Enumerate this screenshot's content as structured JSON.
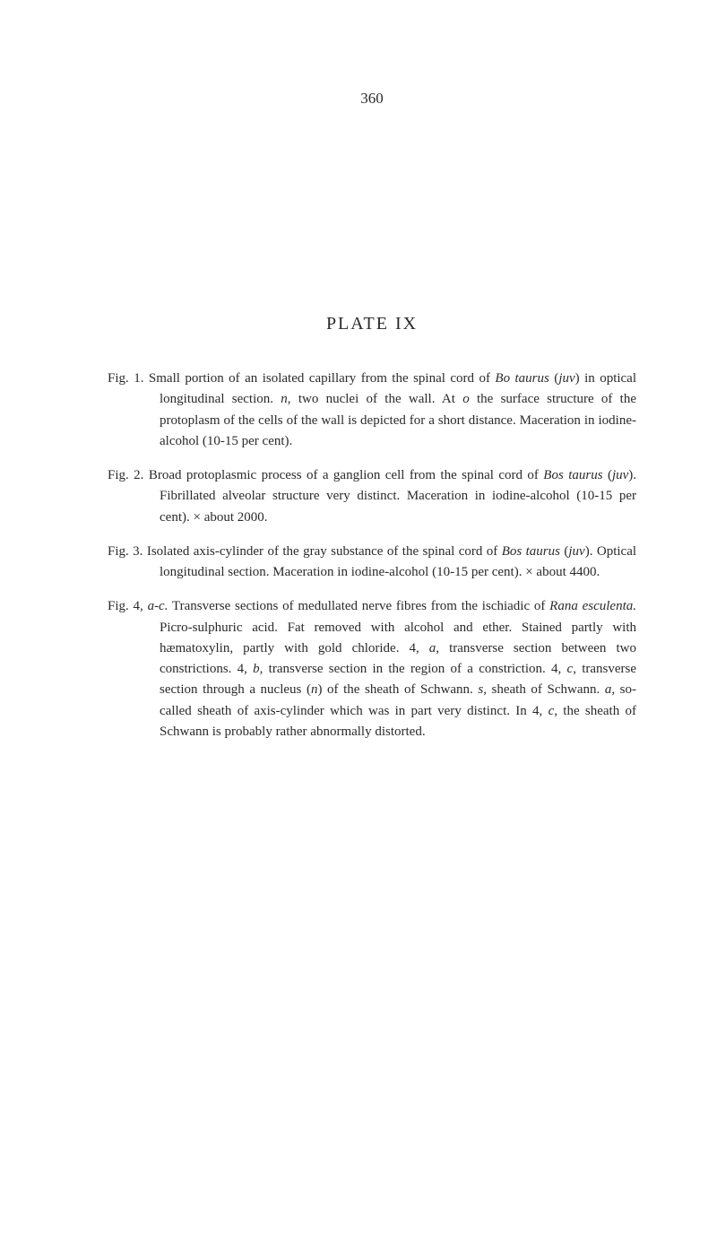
{
  "page_number": "360",
  "plate_title": "PLATE IX",
  "figures": [
    {
      "label": "Fig. 1.",
      "text_parts": [
        {
          "t": "Small portion of an isolated capillary from the spinal cord of ",
          "i": false
        },
        {
          "t": "Bo taurus",
          "i": true
        },
        {
          "t": " (",
          "i": false
        },
        {
          "t": "juv",
          "i": true
        },
        {
          "t": ") in optical longitudinal section.   ",
          "i": false
        },
        {
          "t": "n",
          "i": true
        },
        {
          "t": ", two nuclei of the wall. At ",
          "i": false
        },
        {
          "t": "o",
          "i": true
        },
        {
          "t": " the surface structure of the protoplasm of the cells of the wall is depicted for a short distance.  Maceration in iodine-alcohol (10-15 per cent).",
          "i": false
        }
      ]
    },
    {
      "label": "Fig. 2.",
      "text_parts": [
        {
          "t": "Broad protoplasmic process of a ganglion cell from the spinal cord of ",
          "i": false
        },
        {
          "t": "Bos taurus",
          "i": true
        },
        {
          "t": " (",
          "i": false
        },
        {
          "t": "juv",
          "i": true
        },
        {
          "t": ").  Fibrillated alveolar structure very distinct.  Maceration in iodine-alcohol (10-15 per cent).   × about 2000.",
          "i": false
        }
      ]
    },
    {
      "label": "Fig. 3.",
      "text_parts": [
        {
          "t": "Isolated axis-cylinder of the gray substance of the spinal cord of ",
          "i": false
        },
        {
          "t": "Bos taurus",
          "i": true
        },
        {
          "t": " (",
          "i": false
        },
        {
          "t": "juv",
          "i": true
        },
        {
          "t": ").  Optical longitudinal section.  Maceration in iodine-alcohol (10-15 per cent).   × about 4400.",
          "i": false
        }
      ]
    },
    {
      "label": "Fig. 4,",
      "text_parts": [
        {
          "t": "a-c.",
          "i": true
        },
        {
          "t": "   Transverse sections of medullated nerve fibres from the ischiadic of ",
          "i": false
        },
        {
          "t": "Rana esculenta.",
          "i": true
        },
        {
          "t": "   Picro-sulphuric acid.   Fat removed with alcohol and ether.   Stained partly with hæmatoxylin, partly with gold chloride.   4, ",
          "i": false
        },
        {
          "t": "a",
          "i": true
        },
        {
          "t": ", transverse section between two constrictions.   4, ",
          "i": false
        },
        {
          "t": "b",
          "i": true
        },
        {
          "t": ", transverse section in the region of a constriction.   4, ",
          "i": false
        },
        {
          "t": "c",
          "i": true
        },
        {
          "t": ", transverse section through a nucleus (",
          "i": false
        },
        {
          "t": "n",
          "i": true
        },
        {
          "t": ") of the sheath of Schwann.   ",
          "i": false
        },
        {
          "t": "s",
          "i": true
        },
        {
          "t": ", sheath of Schwann.   ",
          "i": false
        },
        {
          "t": "a",
          "i": true
        },
        {
          "t": ", so-called sheath of axis-cylinder which was in part very distinct.   In 4, ",
          "i": false
        },
        {
          "t": "c",
          "i": true
        },
        {
          "t": ", the sheath of Schwann is probably rather abnormally distorted.",
          "i": false
        }
      ]
    }
  ]
}
